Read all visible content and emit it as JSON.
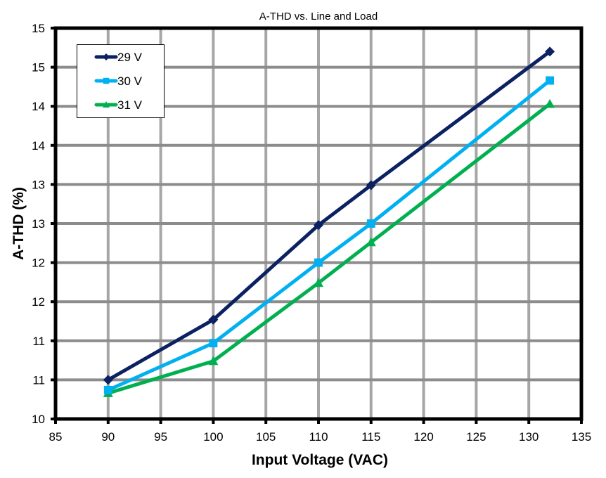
{
  "chart_data": {
    "type": "line",
    "title": "A-THD vs. Line and Load",
    "xlabel": "Input Voltage (VAC)",
    "ylabel": "A-THD (%)",
    "xlim": [
      85,
      135
    ],
    "ylim": [
      10,
      15
    ],
    "x_ticks": [
      85,
      90,
      95,
      100,
      105,
      110,
      115,
      120,
      125,
      130,
      135
    ],
    "x_tick_labels": [
      "85",
      "90",
      "95",
      "100",
      "105",
      "110",
      "115",
      "120",
      "125",
      "130",
      "135"
    ],
    "y_ticks": [
      10,
      10.5,
      11,
      11.5,
      12,
      12.5,
      13,
      13.5,
      14,
      14.5,
      15
    ],
    "y_tick_labels": [
      "10",
      "11",
      "11",
      "12",
      "12",
      "13",
      "13",
      "14",
      "14",
      "15",
      "15"
    ],
    "grid": true,
    "legend_position": "top-left",
    "x": [
      90,
      100,
      110,
      115,
      132
    ],
    "series": [
      {
        "name": "29 V",
        "values": [
          10.5,
          11.27,
          12.48,
          12.99,
          14.7
        ],
        "color": "#0b2161",
        "marker": "diamond"
      },
      {
        "name": "30 V",
        "values": [
          10.37,
          10.97,
          12.0,
          12.5,
          14.33
        ],
        "color": "#00b0f0",
        "marker": "square"
      },
      {
        "name": "31 V",
        "values": [
          10.33,
          10.74,
          11.74,
          12.26,
          14.03
        ],
        "color": "#00b050",
        "marker": "triangle"
      }
    ]
  }
}
